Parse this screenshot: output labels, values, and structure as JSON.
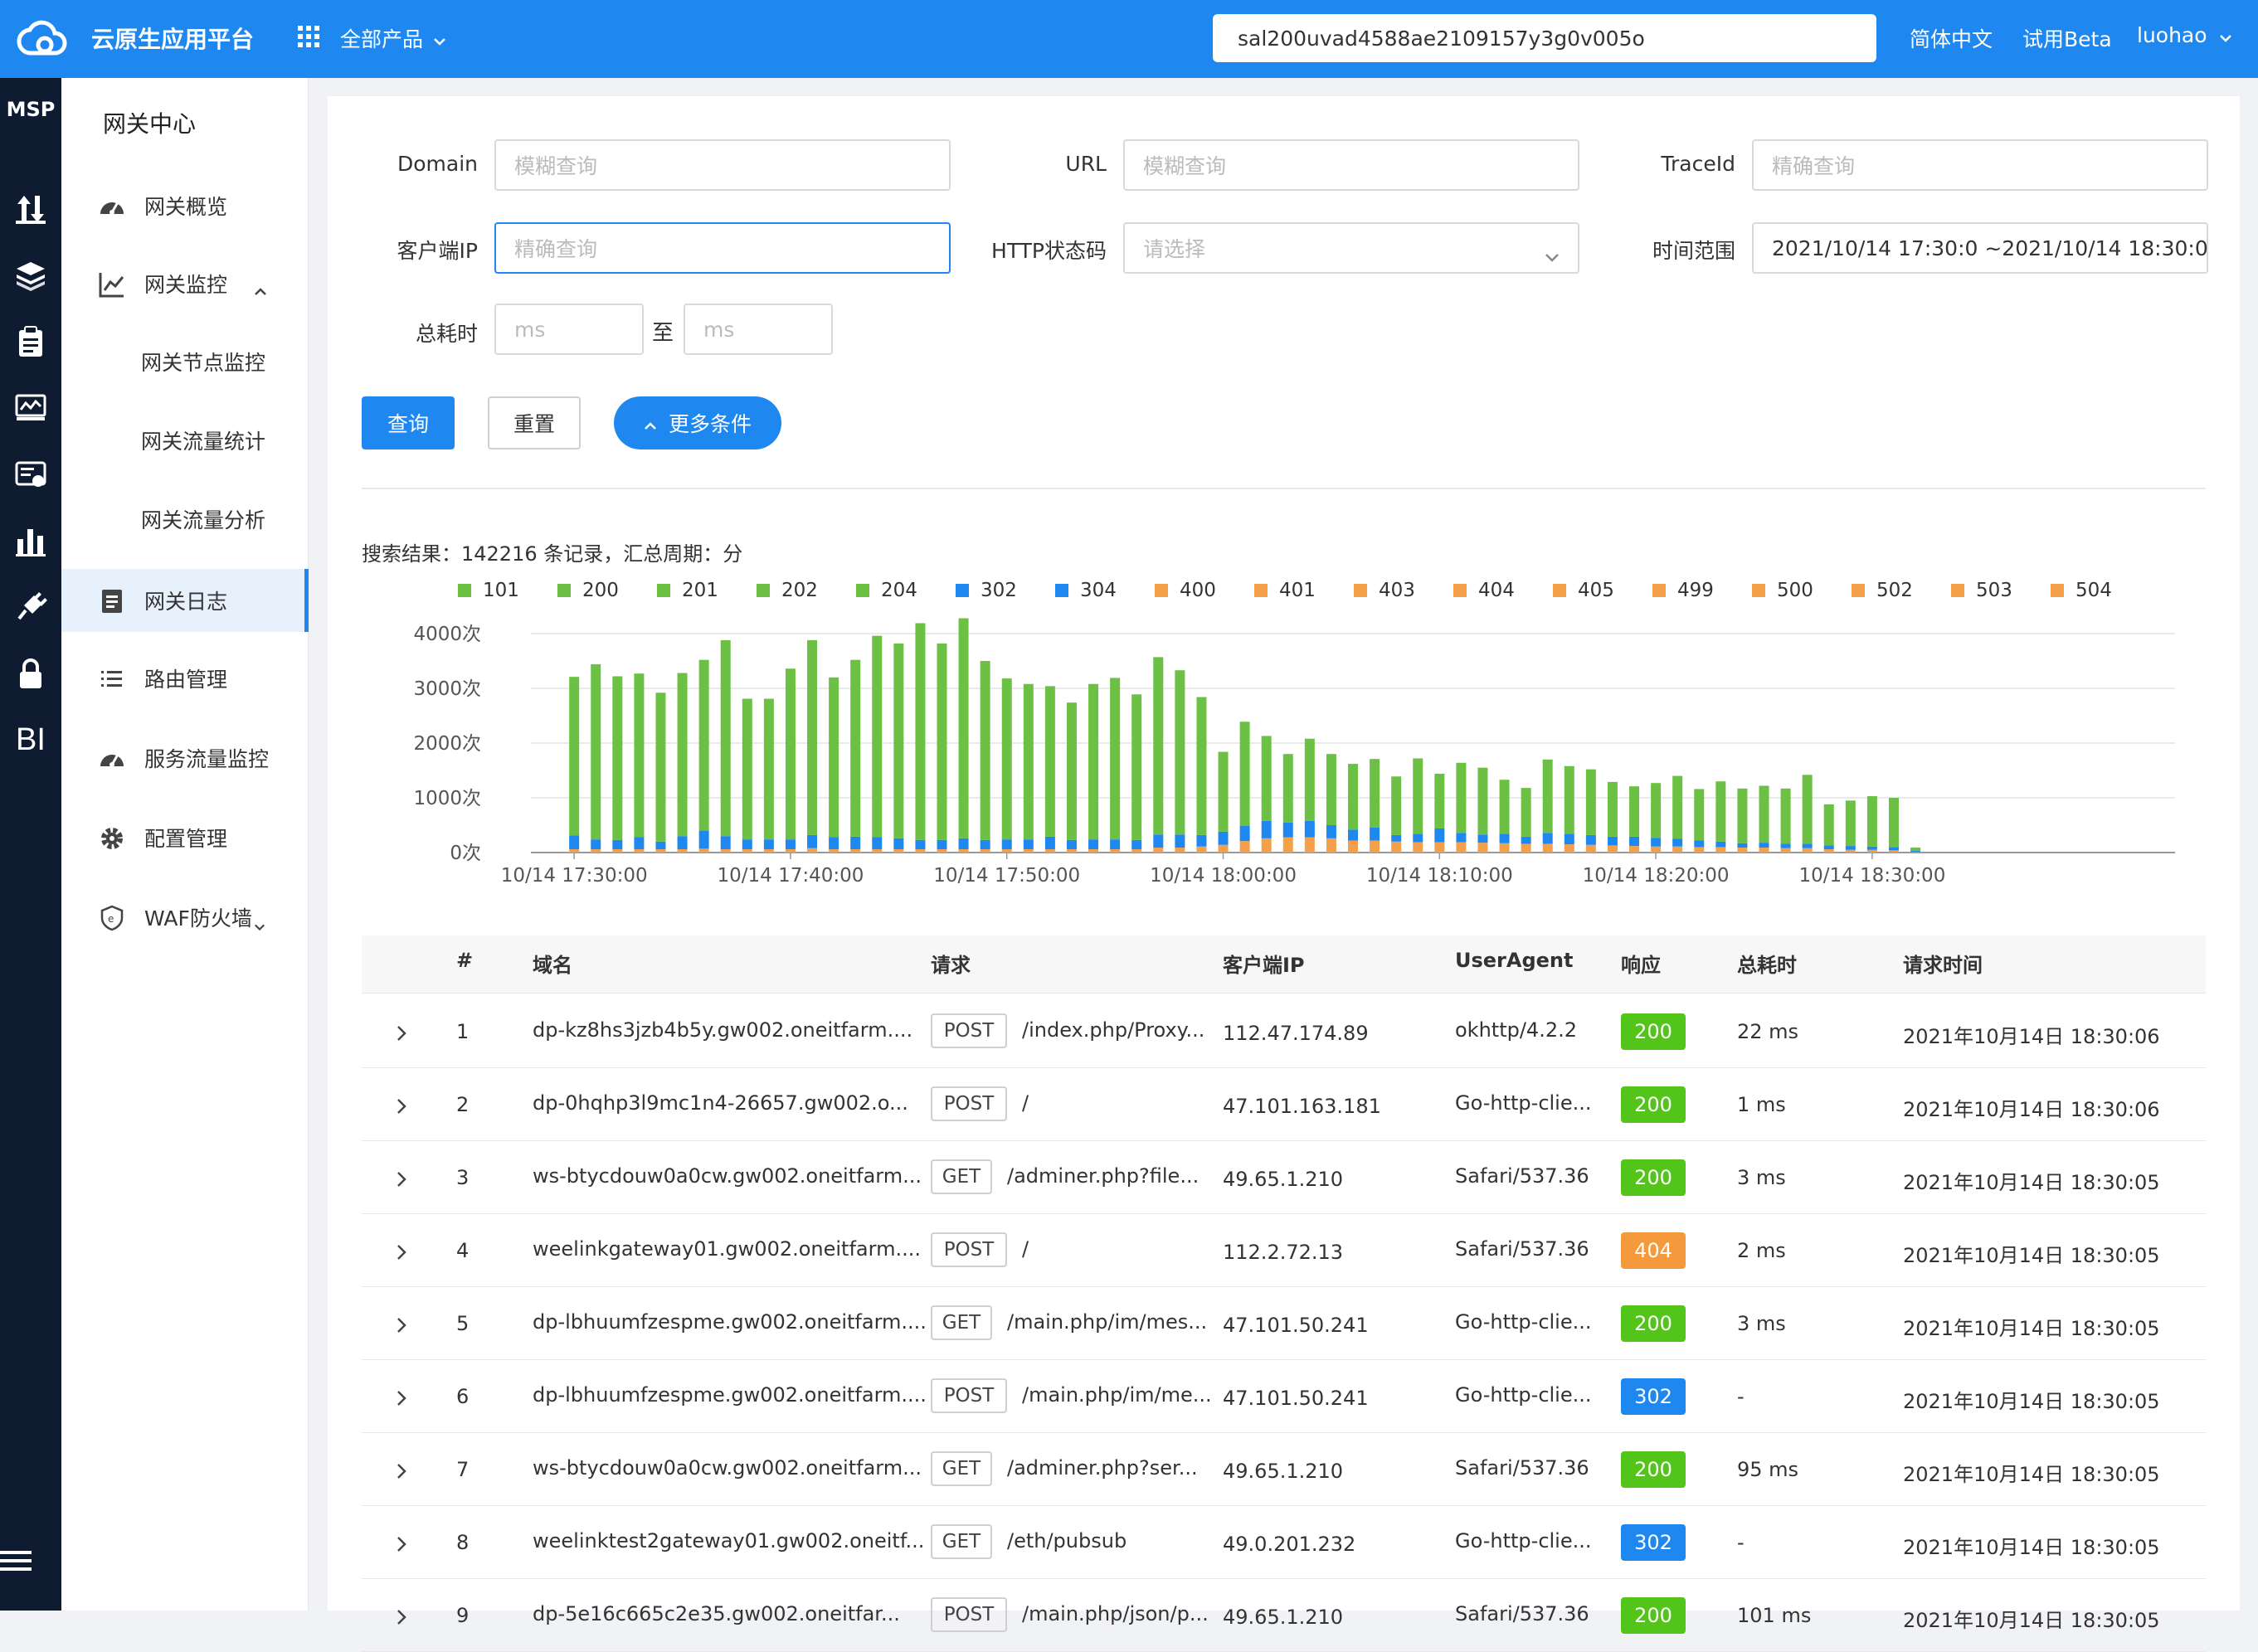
{
  "header": {
    "app_title": "云原生应用平台",
    "all_products": "全部产品",
    "search_value": "sal200uvad4588ae2109157y3g0v005o",
    "language": "简体中文",
    "beta": "试用Beta",
    "user": "luohao"
  },
  "leftnav": {
    "brand": "MSP",
    "icons": [
      "traffic-icon",
      "layers-icon",
      "clipboard-icon",
      "monitor-icon",
      "card-icon",
      "chart-icon",
      "plug-icon",
      "lock-icon",
      "bi-icon"
    ],
    "bi_label": "BI"
  },
  "submenu": {
    "title": "网关中心",
    "items": [
      {
        "label": "网关概览",
        "icon": "dashboard-icon"
      },
      {
        "label": "网关监控",
        "icon": "line-chart-icon"
      },
      {
        "label": "网关节点监控"
      },
      {
        "label": "网关流量统计"
      },
      {
        "label": "网关流量分析"
      },
      {
        "label": "网关日志",
        "icon": "log-icon"
      },
      {
        "label": "路由管理",
        "icon": "list-icon"
      },
      {
        "label": "服务流量监控",
        "icon": "dashboard-icon"
      },
      {
        "label": "配置管理",
        "icon": "gear-icon"
      },
      {
        "label": "WAF防火墙",
        "icon": "shield-icon"
      }
    ]
  },
  "filters": {
    "domain_label": "Domain",
    "domain_placeholder": "模糊查询",
    "url_label": "URL",
    "url_placeholder": "模糊查询",
    "traceid_label": "TraceId",
    "traceid_placeholder": "精确查询",
    "client_ip_label": "客户端IP",
    "client_ip_placeholder": "精确查询",
    "http_status_label": "HTTP状态码",
    "http_status_placeholder": "请选择",
    "time_range_label": "时间范围",
    "time_range_value": "2021/10/14 17:30:0 ~2021/10/14 18:30:0",
    "total_time_label": "总耗时",
    "ms_min_placeholder": "ms",
    "ms_max_placeholder": "ms",
    "to_label": "至"
  },
  "actions": {
    "query": "查询",
    "reset": "重置",
    "more": "更多条件"
  },
  "result_summary": "搜索结果：142216 条记录，汇总周期：分",
  "colors": {
    "green": "#6cc144",
    "blue": "#1f88f0",
    "orange": "#f4a04a",
    "brand": "#1f88f0",
    "nav": "#0e1b31"
  },
  "chart_data": {
    "type": "bar",
    "stacked": true,
    "legend": [
      {
        "name": "101",
        "color": "green"
      },
      {
        "name": "200",
        "color": "green"
      },
      {
        "name": "201",
        "color": "green"
      },
      {
        "name": "202",
        "color": "green"
      },
      {
        "name": "204",
        "color": "green"
      },
      {
        "name": "302",
        "color": "blue"
      },
      {
        "name": "304",
        "color": "blue"
      },
      {
        "name": "400",
        "color": "orange"
      },
      {
        "name": "401",
        "color": "orange"
      },
      {
        "name": "403",
        "color": "orange"
      },
      {
        "name": "404",
        "color": "orange"
      },
      {
        "name": "405",
        "color": "orange"
      },
      {
        "name": "499",
        "color": "orange"
      },
      {
        "name": "500",
        "color": "orange"
      },
      {
        "name": "502",
        "color": "orange"
      },
      {
        "name": "503",
        "color": "orange"
      },
      {
        "name": "504",
        "color": "orange"
      }
    ],
    "y_ticks": [
      "4000次",
      "3000次",
      "2000次",
      "1000次",
      "0次"
    ],
    "ylim": [
      0,
      4000
    ],
    "x_ticks": [
      "10/14 17:30:00",
      "10/14 17:40:00",
      "10/14 17:50:00",
      "10/14 18:00:00",
      "10/14 18:10:00",
      "10/14 18:20:00",
      "10/14 18:30:00"
    ],
    "x_domain_minutes": [
      -2,
      74
    ],
    "series_2xx": [
      2900,
      3200,
      2990,
      2990,
      2720,
      2980,
      3120,
      3580,
      2570,
      2570,
      3120,
      3560,
      2920,
      3230,
      3680,
      3560,
      3960,
      3590,
      4020,
      3270,
      2940,
      2840,
      2750,
      2510,
      2840,
      2950,
      2660,
      3240,
      3000,
      2520,
      1460,
      1900,
      1550,
      1250,
      1500,
      1300,
      1200,
      1250,
      1070,
      1380,
      1000,
      1280,
      1220,
      990,
      890,
      1340,
      1240,
      1200,
      1000,
      920,
      1000,
      1150,
      940,
      1100,
      1000,
      1040,
      1010,
      1260,
      750,
      830,
      920,
      900,
      60
    ],
    "series_3xx": [
      250,
      180,
      170,
      220,
      140,
      240,
      330,
      240,
      180,
      180,
      180,
      240,
      220,
      230,
      220,
      200,
      170,
      170,
      200,
      170,
      180,
      180,
      230,
      170,
      180,
      180,
      170,
      240,
      240,
      210,
      240,
      280,
      320,
      270,
      300,
      240,
      200,
      240,
      120,
      150,
      250,
      170,
      150,
      170,
      130,
      200,
      190,
      180,
      160,
      170,
      160,
      140,
      120,
      100,
      80,
      90,
      80,
      80,
      70,
      70,
      60,
      60,
      20
    ],
    "series_4xx": [
      60,
      60,
      60,
      60,
      60,
      60,
      70,
      60,
      60,
      60,
      60,
      80,
      60,
      60,
      60,
      60,
      60,
      60,
      60,
      60,
      60,
      60,
      60,
      60,
      60,
      60,
      60,
      90,
      90,
      110,
      140,
      210,
      260,
      280,
      280,
      260,
      220,
      220,
      200,
      190,
      190,
      190,
      180,
      170,
      160,
      160,
      150,
      140,
      130,
      120,
      110,
      110,
      100,
      100,
      90,
      90,
      80,
      80,
      60,
      50,
      50,
      40,
      10
    ]
  },
  "table": {
    "headers": [
      "#",
      "域名",
      "请求",
      "客户端IP",
      "UserAgent",
      "响应",
      "总耗时",
      "请求时间"
    ],
    "rows": [
      {
        "index": "1",
        "domain": "dp-kz8hs3jzb4b5y.gw002.oneitfarm....",
        "method": "POST",
        "path": "/index.php/Proxy...",
        "ip": "112.47.174.89",
        "ua": "okhttp/4.2.2",
        "status": "200",
        "status_color": "green",
        "duration": "22 ms",
        "time": "2021年10月14日 18:30:06"
      },
      {
        "index": "2",
        "domain": "dp-0hqhp3l9mc1n4-26657.gw002.o...",
        "method": "POST",
        "path": "/",
        "ip": "47.101.163.181",
        "ua": "Go-http-clie...",
        "status": "200",
        "status_color": "green",
        "duration": "1 ms",
        "time": "2021年10月14日 18:30:06"
      },
      {
        "index": "3",
        "domain": "ws-btycdouw0a0cw.gw002.oneitfarm...",
        "method": "GET",
        "path": "/adminer.php?file...",
        "ip": "49.65.1.210",
        "ua": "Safari/537.36",
        "status": "200",
        "status_color": "green",
        "duration": "3 ms",
        "time": "2021年10月14日 18:30:05"
      },
      {
        "index": "4",
        "domain": "weelinkgateway01.gw002.oneitfarm....",
        "method": "POST",
        "path": "/",
        "ip": "112.2.72.13",
        "ua": "Safari/537.36",
        "status": "404",
        "status_color": "orange",
        "duration": "2 ms",
        "time": "2021年10月14日 18:30:05"
      },
      {
        "index": "5",
        "domain": "dp-lbhuumfzespme.gw002.oneitfarm....",
        "method": "GET",
        "path": "/main.php/im/mes...",
        "ip": "47.101.50.241",
        "ua": "Go-http-clie...",
        "status": "200",
        "status_color": "green",
        "duration": "3 ms",
        "time": "2021年10月14日 18:30:05"
      },
      {
        "index": "6",
        "domain": "dp-lbhuumfzespme.gw002.oneitfarm....",
        "method": "POST",
        "path": "/main.php/im/me...",
        "ip": "47.101.50.241",
        "ua": "Go-http-clie...",
        "status": "302",
        "status_color": "blue",
        "duration": "-",
        "time": "2021年10月14日 18:30:05"
      },
      {
        "index": "7",
        "domain": "ws-btycdouw0a0cw.gw002.oneitfarm...",
        "method": "GET",
        "path": "/adminer.php?ser...",
        "ip": "49.65.1.210",
        "ua": "Safari/537.36",
        "status": "200",
        "status_color": "green",
        "duration": "95 ms",
        "time": "2021年10月14日 18:30:05"
      },
      {
        "index": "8",
        "domain": "weelinktest2gateway01.gw002.oneitf...",
        "method": "GET",
        "path": "/eth/pubsub",
        "ip": "49.0.201.232",
        "ua": "Go-http-clie...",
        "status": "302",
        "status_color": "blue",
        "duration": "-",
        "time": "2021年10月14日 18:30:05"
      },
      {
        "index": "9",
        "domain": "dp-5e16c665c2e35.gw002.oneitfar...",
        "method": "POST",
        "path": "/main.php/json/p...",
        "ip": "49.65.1.210",
        "ua": "Safari/537.36",
        "status": "200",
        "status_color": "green",
        "duration": "101 ms",
        "time": "2021年10月14日 18:30:05"
      }
    ]
  }
}
